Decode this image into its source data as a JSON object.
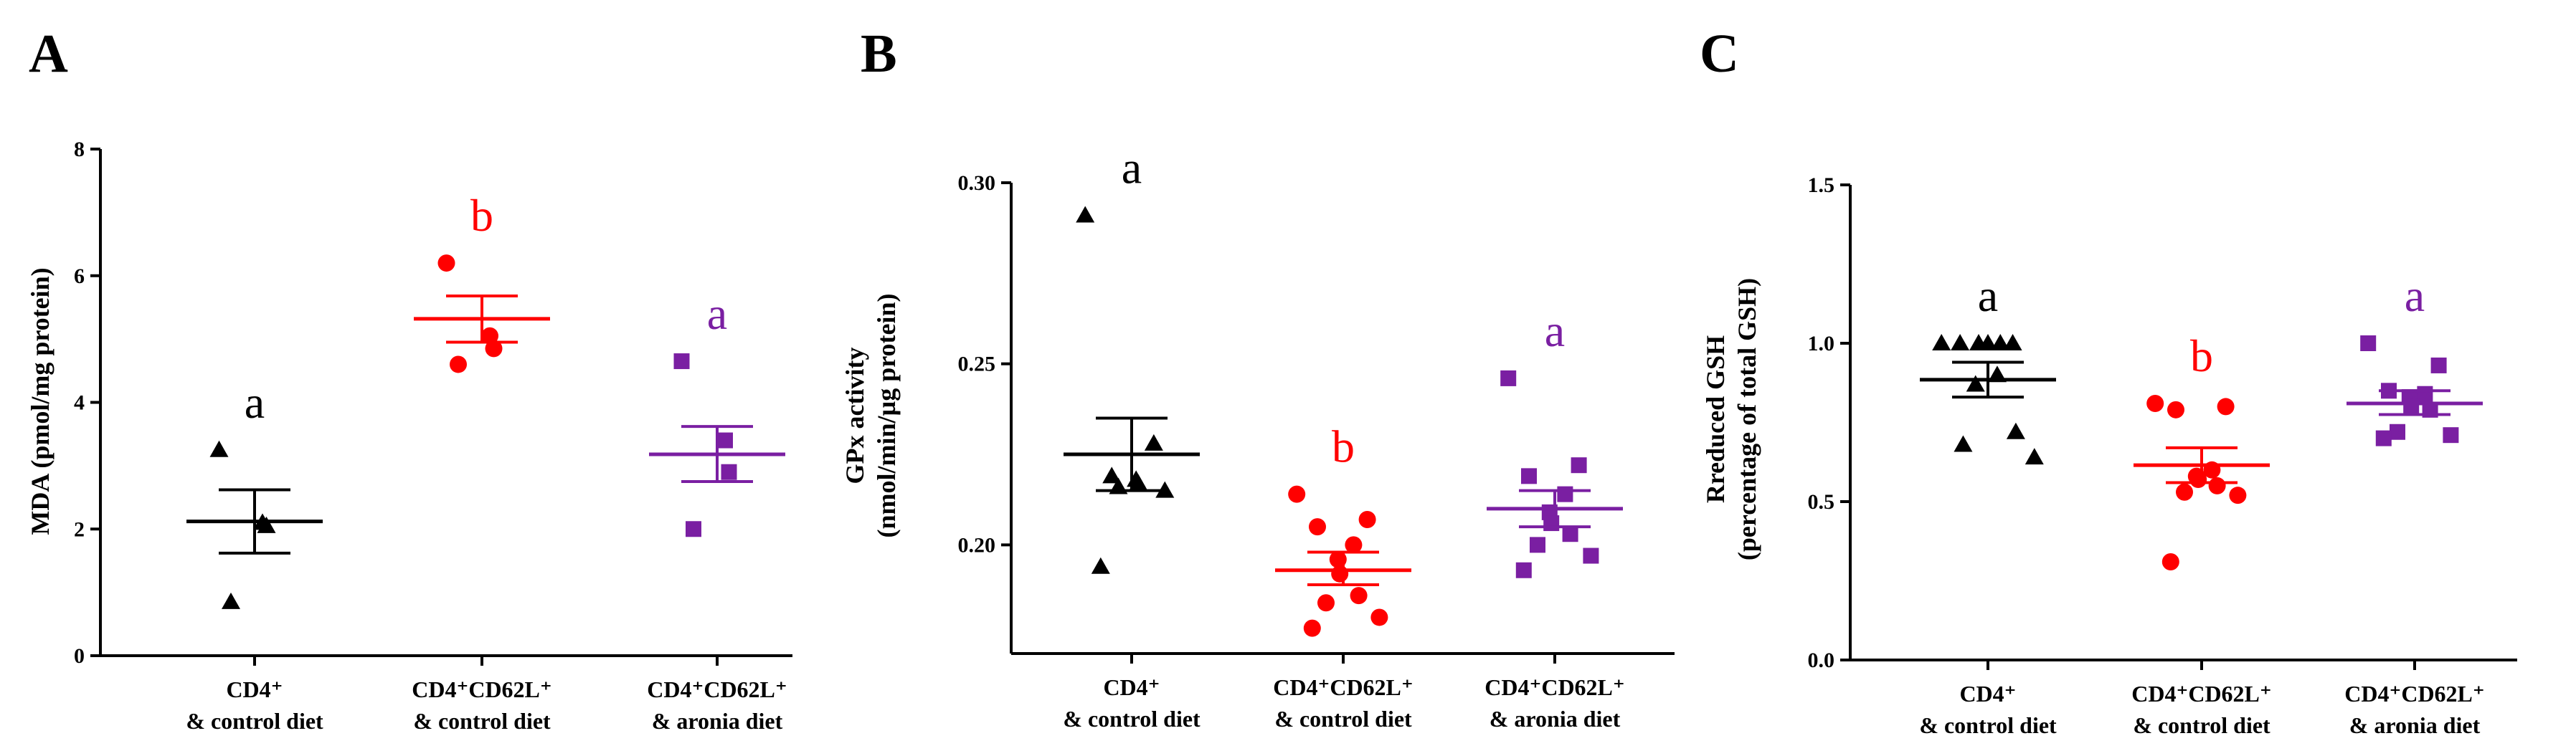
{
  "colors": {
    "black": "#000000",
    "red": "#ff0000",
    "purple": "#7a1fa2"
  },
  "chart_data": [
    {
      "panel": "A",
      "type": "scatter",
      "ylabel_lines": [
        "MDA (pmol/mg protein)"
      ],
      "ylim": [
        0,
        8
      ],
      "yticks": [
        0,
        2,
        4,
        6,
        8
      ],
      "tick_decimals": 0,
      "groups": [
        {
          "label_lines": [
            "CD4⁺",
            "& control diet"
          ],
          "color": "#000000",
          "marker": "triangle",
          "points": [
            3.25,
            2.1,
            2.05,
            0.85
          ],
          "mean": 2.12,
          "sem_low": 1.62,
          "sem_high": 2.62,
          "letter": "a"
        },
        {
          "label_lines": [
            "CD4⁺CD62L⁺",
            "& control diet"
          ],
          "color": "#ff0000",
          "marker": "circle",
          "points": [
            6.2,
            5.05,
            4.85,
            4.6
          ],
          "mean": 5.32,
          "sem_low": 4.95,
          "sem_high": 5.68,
          "letter": "b"
        },
        {
          "label_lines": [
            "CD4⁺CD62L⁺",
            "& aronia diet"
          ],
          "color": "#7a1fa2",
          "marker": "square",
          "points": [
            4.65,
            3.4,
            2.9,
            2.0
          ],
          "mean": 3.18,
          "sem_low": 2.75,
          "sem_high": 3.62,
          "letter": "a"
        }
      ]
    },
    {
      "panel": "B",
      "type": "scatter",
      "ylabel_lines": [
        "GPx activity",
        "(nmol/min/µg protein)"
      ],
      "ylim": [
        0.17,
        0.3
      ],
      "yticks": [
        0.2,
        0.25,
        0.3
      ],
      "tick_decimals": 2,
      "groups": [
        {
          "label_lines": [
            "CD4⁺",
            "& control diet"
          ],
          "color": "#000000",
          "marker": "triangle",
          "points": [
            0.291,
            0.228,
            0.219,
            0.218,
            0.217,
            0.216,
            0.215,
            0.194
          ],
          "mean": 0.225,
          "sem_low": 0.215,
          "sem_high": 0.235,
          "letter": "a"
        },
        {
          "label_lines": [
            "CD4⁺CD62L⁺",
            "& control diet"
          ],
          "color": "#ff0000",
          "marker": "circle",
          "points": [
            0.214,
            0.207,
            0.205,
            0.2,
            0.196,
            0.192,
            0.186,
            0.184,
            0.18,
            0.177
          ],
          "mean": 0.193,
          "sem_low": 0.189,
          "sem_high": 0.198,
          "letter": "b"
        },
        {
          "label_lines": [
            "CD4⁺CD62L⁺",
            "& aronia diet"
          ],
          "color": "#7a1fa2",
          "marker": "square",
          "points": [
            0.246,
            0.222,
            0.219,
            0.214,
            0.209,
            0.206,
            0.203,
            0.2,
            0.197,
            0.193
          ],
          "mean": 0.21,
          "sem_low": 0.205,
          "sem_high": 0.215,
          "letter": "a"
        }
      ]
    },
    {
      "panel": "C",
      "type": "scatter",
      "ylabel_lines": [
        "Rreduced GSH",
        "(percentage of total GSH)"
      ],
      "ylim": [
        0,
        1.5
      ],
      "yticks": [
        0,
        0.5,
        1,
        1.5
      ],
      "tick_decimals": 1,
      "groups": [
        {
          "label_lines": [
            "CD4⁺",
            "& control diet"
          ],
          "color": "#000000",
          "marker": "triangle",
          "points": [
            1.0,
            1.0,
            1.0,
            1.0,
            1.0,
            1.0,
            0.9,
            0.87,
            0.72,
            0.68,
            0.64
          ],
          "mean": 0.885,
          "sem_low": 0.83,
          "sem_high": 0.94,
          "letter": "a"
        },
        {
          "label_lines": [
            "CD4⁺CD62L⁺",
            "& control diet"
          ],
          "color": "#ff0000",
          "marker": "circle",
          "points": [
            0.81,
            0.8,
            0.79,
            0.6,
            0.58,
            0.57,
            0.55,
            0.53,
            0.52,
            0.31
          ],
          "mean": 0.615,
          "sem_low": 0.56,
          "sem_high": 0.67,
          "letter": "b"
        },
        {
          "label_lines": [
            "CD4⁺CD62L⁺",
            "& aronia diet"
          ],
          "color": "#7a1fa2",
          "marker": "square",
          "points": [
            1.0,
            0.93,
            0.85,
            0.84,
            0.83,
            0.8,
            0.79,
            0.72,
            0.71,
            0.7
          ],
          "mean": 0.81,
          "sem_low": 0.775,
          "sem_high": 0.85,
          "letter": "a"
        }
      ]
    }
  ]
}
